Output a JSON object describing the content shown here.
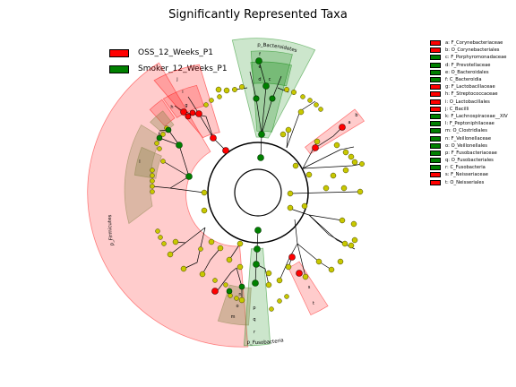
{
  "title": "Significantly Represented Taxa",
  "groups": [
    {
      "name": "OSS_12_Weeks_P1",
      "color": "#ff0000"
    },
    {
      "name": "Smoker_12_Weeks_P1",
      "color": "#008000"
    }
  ],
  "clade_key": [
    {
      "label": "a: F_Corynebacteriaceae",
      "group": 0
    },
    {
      "label": "b: O_Corynebacteriales",
      "group": 0
    },
    {
      "label": "c: F_Porphyromonadaceae",
      "group": 1
    },
    {
      "label": "d: F_Prevotellaceae",
      "group": 1
    },
    {
      "label": "e: O_Bacteroidales",
      "group": 1
    },
    {
      "label": "f: C_Bacteroidia",
      "group": 1
    },
    {
      "label": "g: F_Lactobacillaceae",
      "group": 0
    },
    {
      "label": "h: F_Streptococcaceae",
      "group": 0
    },
    {
      "label": "i: O_Lactobacillales",
      "group": 0
    },
    {
      "label": "j: C_Bacilli",
      "group": 0
    },
    {
      "label": "k: F_Lachnospiraceae__XIV",
      "group": 1
    },
    {
      "label": "l: F_Peptoniphilaceae",
      "group": 1
    },
    {
      "label": "m: O_Clostridiales",
      "group": 1
    },
    {
      "label": "n: F_Veillonellaceae",
      "group": 1
    },
    {
      "label": "o: O_Veillonellales",
      "group": 1
    },
    {
      "label": "p: F_Fusobacteriaceae",
      "group": 1
    },
    {
      "label": "q: O_Fusobacteriales",
      "group": 1
    },
    {
      "label": "r: C_Fusobacteria",
      "group": 1
    },
    {
      "label": "s: F_Neisseriaceae",
      "group": 0
    },
    {
      "label": "t: O_Neisseriales",
      "group": 0
    }
  ],
  "phylum_labels": {
    "bacteroidetes": "p_Bacteroidetes",
    "firmicutes": "p_Firmicutes",
    "fusobacteria": "p_Fusobacteria"
  },
  "sector_letters": {
    "a": "a",
    "b": "b",
    "c": "c",
    "d": "d",
    "e": "e",
    "f": "f",
    "g": "g",
    "h": "h",
    "i": "i",
    "j": "j",
    "k": "k",
    "l": "l",
    "m": "m",
    "n": "n",
    "o": "o",
    "p": "p",
    "q": "q",
    "r": "r",
    "s": "s",
    "t": "t"
  },
  "colors": {
    "enriched_oss": "#ff0000",
    "enriched_smoker": "#008000",
    "non_significant": "#c8c800",
    "oss_fill": "#ff0000",
    "smoker_fill": "#008000"
  }
}
